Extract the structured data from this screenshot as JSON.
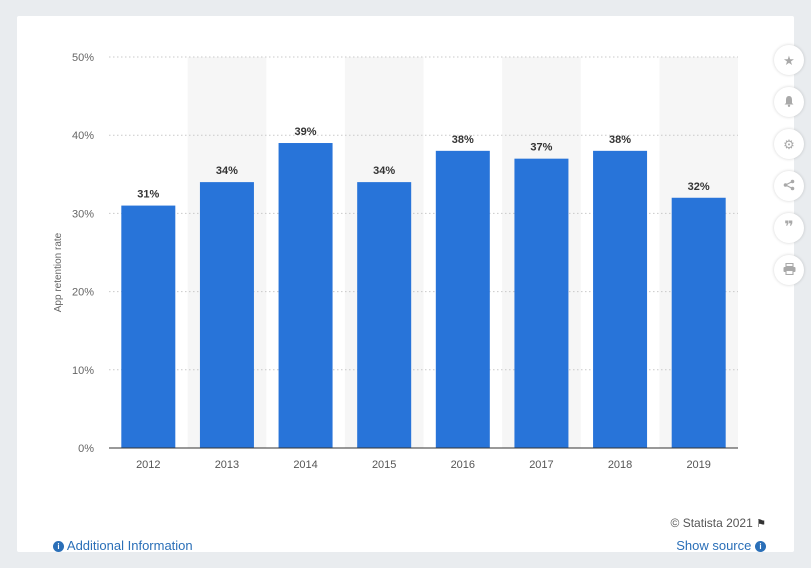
{
  "chart_data": {
    "type": "bar",
    "categories": [
      "2012",
      "2013",
      "2014",
      "2015",
      "2016",
      "2017",
      "2018",
      "2019"
    ],
    "values": [
      31,
      34,
      39,
      34,
      38,
      37,
      38,
      32
    ],
    "data_labels": [
      "31%",
      "34%",
      "39%",
      "34%",
      "38%",
      "37%",
      "38%",
      "32%"
    ],
    "ylabel": "App retention rate",
    "ylim": [
      0,
      50
    ],
    "yticks": [
      0,
      10,
      20,
      30,
      40,
      50
    ],
    "ytick_labels": [
      "0%",
      "10%",
      "20%",
      "30%",
      "40%",
      "50%"
    ],
    "grid": true,
    "bar_color": "#2874d9",
    "band_color": "#f6f6f6"
  },
  "toolbar": {
    "icons": [
      "star-icon",
      "bell-icon",
      "gear-icon",
      "share-icon",
      "quote-icon",
      "print-icon"
    ]
  },
  "footer": {
    "credit": "© Statista 2021",
    "additional_info": "Additional Information",
    "show_source": "Show source",
    "link_color": "#2a6fb8"
  }
}
